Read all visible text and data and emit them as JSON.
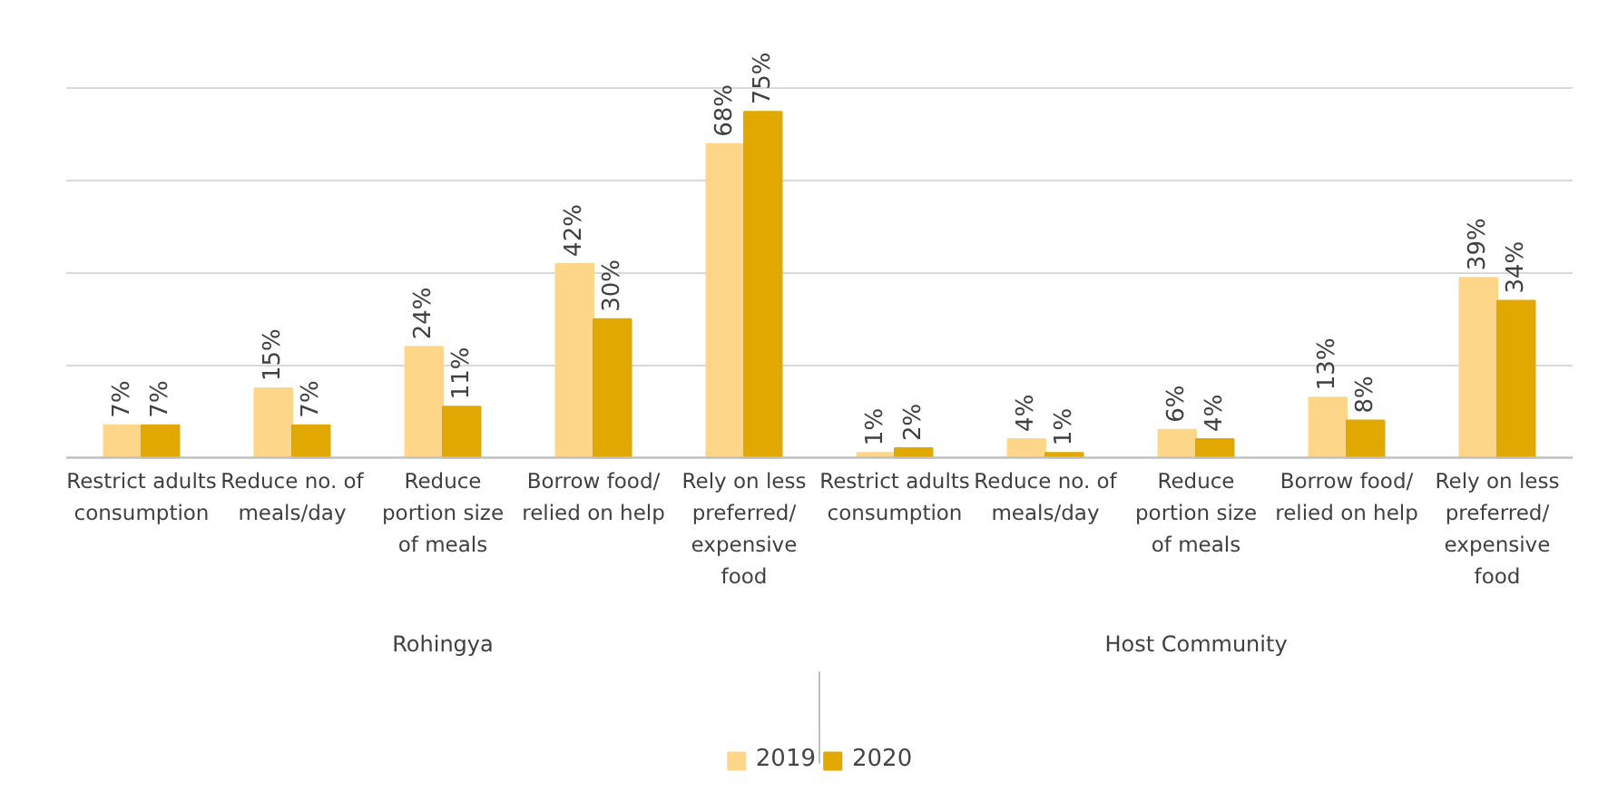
{
  "chart_data": {
    "type": "bar",
    "categories": [
      "Restrict adults\nconsumption",
      "Reduce no. of\nmeals/day",
      "Reduce\nportion size\nof meals",
      "Borrow food/\nrelied on help",
      "Rely on less\npreferred/\nexpensive\nfood",
      "Restrict adults\nconsumption",
      "Reduce no. of\nmeals/day",
      "Reduce\nportion size\nof meals",
      "Borrow food/\nrelied on help",
      "Rely on less\npreferred/\nexpensive\nfood"
    ],
    "series": [
      {
        "name": "2019",
        "color": "#fdd68a",
        "values": [
          7,
          15,
          24,
          42,
          68,
          1,
          4,
          6,
          13,
          39
        ],
        "value_labels": [
          "7%",
          "15%",
          "24%",
          "42%",
          "68%",
          "1%",
          "4%",
          "6%",
          "13%",
          "39%"
        ]
      },
      {
        "name": "2020",
        "color": "#e0a800",
        "values": [
          7,
          7,
          11,
          30,
          75,
          2,
          1,
          4,
          8,
          34
        ],
        "value_labels": [
          "7%",
          "7%",
          "11%",
          "30%",
          "75%",
          "2%",
          "1%",
          "4%",
          "8%",
          "34%"
        ]
      }
    ],
    "annotations": [
      "Rohingya",
      "Host Community"
    ],
    "tick_labels": "x",
    "grid": "y",
    "legend": "bottom"
  }
}
